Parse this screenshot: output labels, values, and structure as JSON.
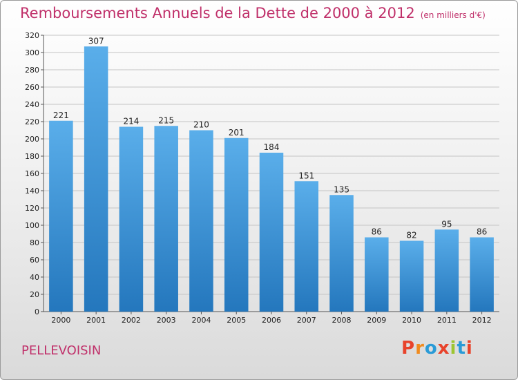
{
  "header": {
    "title": "Remboursements Annuels de la Dette de 2000 à 2012",
    "unit": "(en milliers d'€)"
  },
  "footer": {
    "town": "PELLEVOISIN",
    "logo": "Proxiti",
    "logo_colors": [
      "#e8432b",
      "#f08b1e",
      "#2a9bd7",
      "#e8432b",
      "#9dc531",
      "#2a9bd7",
      "#e8432b"
    ]
  },
  "colors": {
    "bar_top": "#5aaeea",
    "bar_bottom": "#2477bd",
    "title": "#c0306a",
    "grid": "#c4c4c4"
  },
  "chart_data": {
    "type": "bar",
    "title": "Remboursements Annuels de la Dette de 2000 à 2012",
    "xlabel": "",
    "ylabel": "",
    "ylim": [
      0,
      320
    ],
    "yticks": [
      0,
      20,
      40,
      60,
      80,
      100,
      120,
      140,
      160,
      180,
      200,
      220,
      240,
      260,
      280,
      300,
      320
    ],
    "grid": true,
    "categories": [
      "2000",
      "2001",
      "2002",
      "2003",
      "2004",
      "2005",
      "2006",
      "2007",
      "2008",
      "2009",
      "2010",
      "2011",
      "2012"
    ],
    "values": [
      221,
      307,
      214,
      215,
      210,
      201,
      184,
      151,
      135,
      86,
      82,
      95,
      86
    ]
  }
}
